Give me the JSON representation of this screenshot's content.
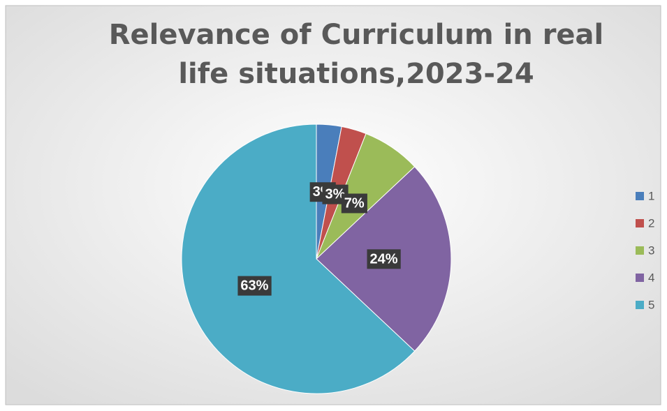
{
  "chart_data": {
    "type": "pie",
    "title": "Relevance of Curriculum in real life situations,2023-24",
    "categories": [
      "1",
      "2",
      "3",
      "4",
      "5"
    ],
    "values": [
      3,
      3,
      7,
      24,
      63
    ],
    "value_labels": [
      "3%",
      "3%",
      "7%",
      "24%",
      "63%"
    ],
    "colors": [
      "#4a7ebb",
      "#c0504d",
      "#9bbb59",
      "#8064a2",
      "#4bacc6"
    ],
    "legend": "right"
  }
}
